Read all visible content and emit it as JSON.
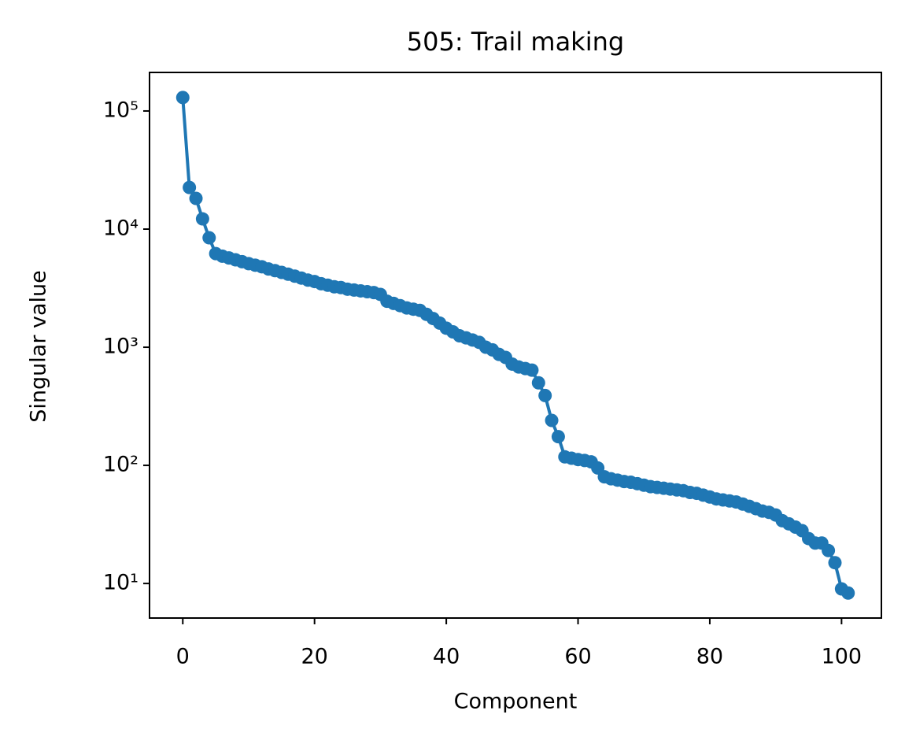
{
  "chart_data": {
    "type": "line",
    "title": "505: Trail making",
    "x_label": "Component",
    "y_label": "Singular value",
    "log_y": true,
    "color": "#1f77b4",
    "marker": "circle",
    "x": [
      0,
      1,
      2,
      3,
      4,
      5,
      6,
      7,
      8,
      9,
      10,
      11,
      12,
      13,
      14,
      15,
      16,
      17,
      18,
      19,
      20,
      21,
      22,
      23,
      24,
      25,
      26,
      27,
      28,
      29,
      30,
      31,
      32,
      33,
      34,
      35,
      36,
      37,
      38,
      39,
      40,
      41,
      42,
      43,
      44,
      45,
      46,
      47,
      48,
      49,
      50,
      51,
      52,
      53,
      54,
      55,
      56,
      57,
      58,
      59,
      60,
      61,
      62,
      63,
      64,
      65,
      66,
      67,
      68,
      69,
      70,
      71,
      72,
      73,
      74,
      75,
      76,
      77,
      78,
      79,
      80,
      81,
      82,
      83,
      84,
      85,
      86,
      87,
      88,
      89,
      90,
      91,
      92,
      93,
      94,
      95,
      96,
      97,
      98,
      99,
      100,
      101
    ],
    "values": [
      130000,
      22500,
      18200,
      12200,
      8450,
      6200,
      5900,
      5700,
      5500,
      5300,
      5100,
      4950,
      4800,
      4600,
      4450,
      4300,
      4150,
      4000,
      3850,
      3700,
      3600,
      3450,
      3350,
      3250,
      3200,
      3100,
      3050,
      3000,
      2950,
      2900,
      2800,
      2450,
      2350,
      2250,
      2150,
      2100,
      2050,
      1900,
      1750,
      1600,
      1450,
      1350,
      1250,
      1200,
      1150,
      1100,
      1000,
      950,
      870,
      820,
      720,
      680,
      660,
      640,
      500,
      390,
      240,
      175,
      118,
      115,
      112,
      110,
      107,
      95,
      80,
      77,
      75,
      73,
      72,
      70,
      68,
      66,
      65,
      64,
      63,
      62,
      61,
      59,
      58,
      56,
      54,
      52,
      51,
      50,
      49,
      47,
      45,
      43,
      41,
      40,
      38,
      34,
      32,
      30,
      28,
      24,
      22,
      22,
      19,
      15,
      9,
      8.3
    ],
    "xlim": [
      -5.05,
      106.05
    ],
    "xticks": [
      0,
      20,
      40,
      60,
      80,
      100
    ],
    "ylim": [
      5.1,
      212000
    ],
    "yticks": [
      {
        "value": 10,
        "label": "10¹"
      },
      {
        "value": 100,
        "label": "10²"
      },
      {
        "value": 1000,
        "label": "10³"
      },
      {
        "value": 10000,
        "label": "10⁴"
      },
      {
        "value": 100000,
        "label": "10⁵"
      }
    ]
  }
}
